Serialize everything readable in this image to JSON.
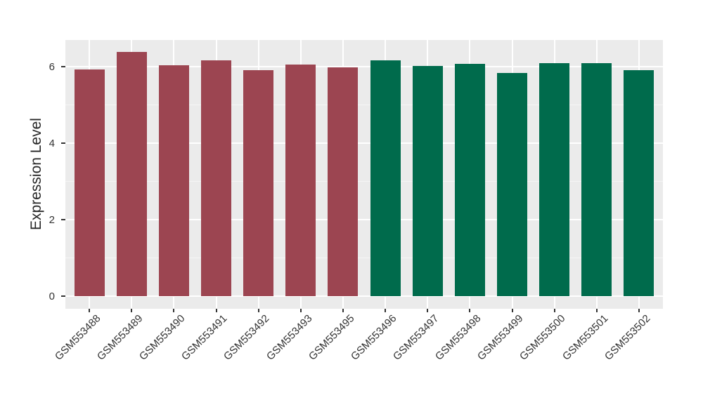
{
  "chart_data": {
    "type": "bar",
    "title": "",
    "xlabel": "",
    "ylabel": "Expression Level",
    "categories": [
      "GSM553488",
      "GSM553489",
      "GSM553490",
      "GSM553491",
      "GSM553492",
      "GSM553493",
      "GSM553495",
      "GSM553496",
      "GSM553497",
      "GSM553498",
      "GSM553499",
      "GSM553500",
      "GSM553501",
      "GSM553502"
    ],
    "values": [
      5.93,
      6.38,
      6.04,
      6.16,
      5.9,
      6.05,
      5.98,
      6.16,
      6.02,
      6.07,
      5.84,
      6.1,
      6.1,
      5.91
    ],
    "bar_colors": [
      "#9c4551",
      "#9c4551",
      "#9c4551",
      "#9c4551",
      "#9c4551",
      "#9c4551",
      "#9c4551",
      "#006b4c",
      "#006b4c",
      "#006b4c",
      "#006b4c",
      "#006b4c",
      "#006b4c",
      "#006b4c"
    ],
    "group_colors": {
      "left_group": "#9c4551",
      "right_group": "#006b4c"
    },
    "yticks": [
      0,
      2,
      4,
      6
    ],
    "minor_yticks": [
      1,
      3,
      5
    ],
    "ylim": [
      0,
      6.7
    ],
    "grid": "on",
    "legend": "none",
    "x_tick_rotation_deg": 45,
    "panel_bg": "#ebebeb",
    "grid_major_color": "#ffffff",
    "grid_minor_color": "#f5f5f5",
    "tick_color": "#333333",
    "label_color": "#333333",
    "axis_title_color": "#262626"
  }
}
